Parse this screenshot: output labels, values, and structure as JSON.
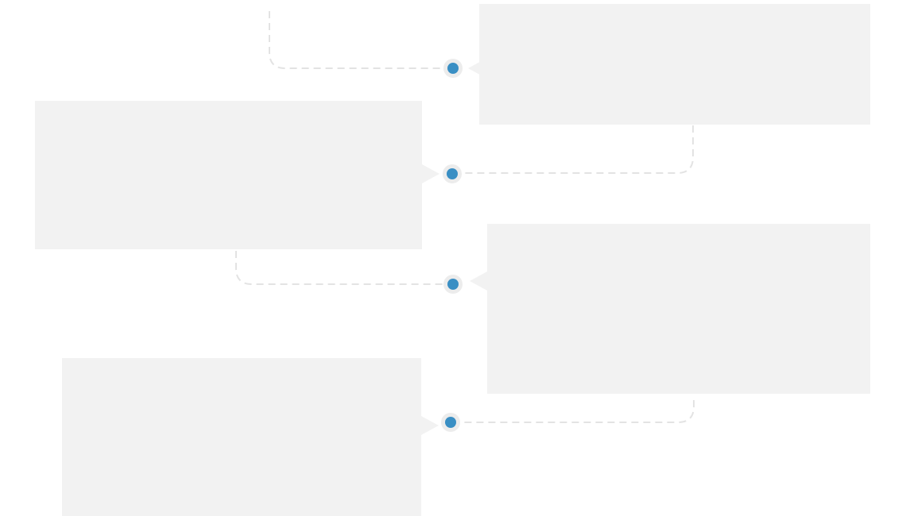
{
  "colors": {
    "card_fill": "#f2f2f2",
    "connector_line": "#e3e3e3",
    "node_ring": "#ececec",
    "node_dot": "#3a8fc4",
    "background": "#ffffff"
  },
  "timeline": {
    "entries": [
      {
        "id": "entry-1",
        "side": "right"
      },
      {
        "id": "entry-2",
        "side": "left"
      },
      {
        "id": "entry-3",
        "side": "right"
      },
      {
        "id": "entry-4",
        "side": "left"
      }
    ]
  }
}
